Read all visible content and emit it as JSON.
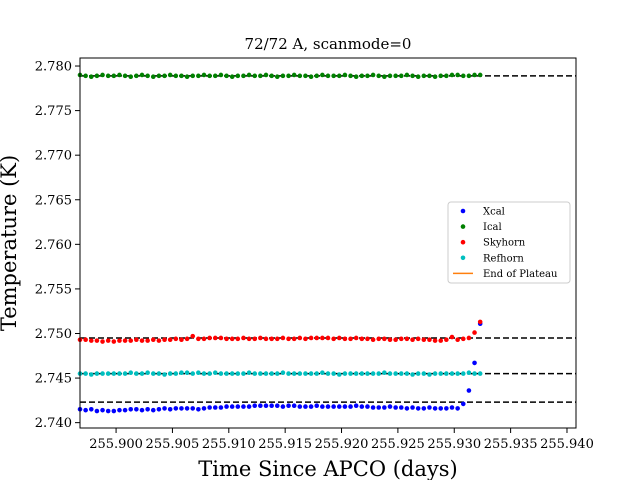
{
  "chart_data": {
    "type": "scatter",
    "title": "72/72 A, scanmode=0",
    "xlabel": "Time Since APCO (days)",
    "ylabel": "Temperature (K)",
    "xlim": [
      255.8968,
      255.9408
    ],
    "ylim": [
      2.7394,
      2.7809
    ],
    "xticks": [
      255.9,
      255.905,
      255.91,
      255.915,
      255.92,
      255.925,
      255.93,
      255.935,
      255.94
    ],
    "xtick_labels": [
      "255.900",
      "255.905",
      "255.910",
      "255.915",
      "255.920",
      "255.925",
      "255.930",
      "255.935",
      "255.940"
    ],
    "yticks": [
      2.74,
      2.745,
      2.75,
      2.755,
      2.76,
      2.765,
      2.77,
      2.775,
      2.78
    ],
    "ytick_labels": [
      "2.740",
      "2.745",
      "2.750",
      "2.755",
      "2.760",
      "2.765",
      "2.770",
      "2.775",
      "2.780"
    ],
    "legend_position": "center-right",
    "grid": false,
    "x_start": 255.8968,
    "x_step": 0.0005,
    "hlines": [
      {
        "y": 2.7789,
        "style": "dashed",
        "color": "#000000"
      },
      {
        "y": 2.7495,
        "style": "dashed",
        "color": "#000000"
      },
      {
        "y": 2.7455,
        "style": "dashed",
        "color": "#000000"
      },
      {
        "y": 2.7423,
        "style": "dashed",
        "color": "#000000"
      }
    ],
    "series": [
      {
        "name": "Xcal",
        "color": "#0000ff",
        "kind": "points",
        "values": [
          2.7415,
          2.7414,
          2.7415,
          2.7413,
          2.7414,
          2.7413,
          2.7413,
          2.7414,
          2.7414,
          2.7415,
          2.7415,
          2.7414,
          2.7415,
          2.7414,
          2.7415,
          2.7416,
          2.7415,
          2.7416,
          2.7416,
          2.7416,
          2.7416,
          2.7415,
          2.7416,
          2.7417,
          2.7417,
          2.7417,
          2.7418,
          2.7418,
          2.7418,
          2.7418,
          2.7418,
          2.7419,
          2.7419,
          2.7419,
          2.7419,
          2.7419,
          2.7418,
          2.7419,
          2.7419,
          2.7418,
          2.7418,
          2.7418,
          2.7419,
          2.7418,
          2.7418,
          2.7418,
          2.7418,
          2.7418,
          2.7418,
          2.7419,
          2.7418,
          2.7418,
          2.7417,
          2.7417,
          2.7417,
          2.7418,
          2.7417,
          2.7417,
          2.7416,
          2.7417,
          2.7416,
          2.7416,
          2.7417,
          2.7416,
          2.7416,
          2.7416,
          2.7417,
          2.7416,
          2.7421,
          2.7436,
          2.7467,
          2.7511
        ]
      },
      {
        "name": "Ical",
        "color": "#008000",
        "kind": "points",
        "values": [
          2.779,
          2.7789,
          2.7788,
          2.7789,
          2.779,
          2.7789,
          2.7789,
          2.779,
          2.7789,
          2.7788,
          2.7789,
          2.779,
          2.7789,
          2.7788,
          2.7789,
          2.7789,
          2.779,
          2.7789,
          2.7789,
          2.7788,
          2.7789,
          2.7789,
          2.779,
          2.7789,
          2.7789,
          2.779,
          2.7789,
          2.7788,
          2.7789,
          2.7789,
          2.779,
          2.7789,
          2.7789,
          2.779,
          2.7789,
          2.7788,
          2.7789,
          2.7789,
          2.779,
          2.7789,
          2.7789,
          2.7788,
          2.7789,
          2.779,
          2.7789,
          2.7789,
          2.7789,
          2.779,
          2.7789,
          2.7788,
          2.7789,
          2.7789,
          2.779,
          2.7789,
          2.7788,
          2.7789,
          2.7789,
          2.7789,
          2.779,
          2.7789,
          2.7788,
          2.7789,
          2.7789,
          2.7788,
          2.7789,
          2.7789,
          2.779,
          2.779,
          2.7789,
          2.7789,
          2.779,
          2.779
        ]
      },
      {
        "name": "Skyhorn",
        "color": "#ff0000",
        "kind": "points",
        "values": [
          2.7493,
          2.7493,
          2.7492,
          2.7492,
          2.7491,
          2.7492,
          2.7491,
          2.7492,
          2.7492,
          2.7492,
          2.7493,
          2.7492,
          2.7492,
          2.7493,
          2.7492,
          2.7493,
          2.7493,
          2.7494,
          2.7493,
          2.7494,
          2.7497,
          2.7494,
          2.7494,
          2.7495,
          2.7495,
          2.7495,
          2.7494,
          2.7494,
          2.7494,
          2.7495,
          2.7494,
          2.7494,
          2.7495,
          2.7494,
          2.7494,
          2.7494,
          2.7495,
          2.7494,
          2.7494,
          2.7495,
          2.7494,
          2.7495,
          2.7495,
          2.7495,
          2.7495,
          2.7494,
          2.7495,
          2.7494,
          2.7494,
          2.7495,
          2.7494,
          2.7494,
          2.7493,
          2.7494,
          2.7494,
          2.7493,
          2.7493,
          2.7494,
          2.7494,
          2.7493,
          2.7494,
          2.7493,
          2.7493,
          2.7492,
          2.7492,
          2.7493,
          2.7496,
          2.7493,
          2.7494,
          2.7495,
          2.7501,
          2.7513
        ]
      },
      {
        "name": "Refhorn",
        "color": "#00bfbf",
        "kind": "points",
        "values": [
          2.7455,
          2.7455,
          2.7454,
          2.7455,
          2.7455,
          2.7455,
          2.7455,
          2.7455,
          2.7455,
          2.7456,
          2.7455,
          2.7455,
          2.7456,
          2.7455,
          2.7455,
          2.7454,
          2.7455,
          2.7455,
          2.7456,
          2.7456,
          2.7455,
          2.7456,
          2.7455,
          2.7455,
          2.7456,
          2.7455,
          2.7455,
          2.7455,
          2.7455,
          2.7455,
          2.7456,
          2.7455,
          2.7455,
          2.7455,
          2.7455,
          2.7455,
          2.7456,
          2.7455,
          2.7455,
          2.7455,
          2.7455,
          2.7455,
          2.7455,
          2.7456,
          2.7455,
          2.7455,
          2.7454,
          2.7455,
          2.7455,
          2.7455,
          2.7455,
          2.7455,
          2.7455,
          2.7455,
          2.7456,
          2.7455,
          2.7455,
          2.7455,
          2.7455,
          2.7454,
          2.7455,
          2.7455,
          2.7454,
          2.7455,
          2.7455,
          2.7455,
          2.7455,
          2.7455,
          2.7455,
          2.7456,
          2.7455,
          2.7455
        ]
      },
      {
        "name": "End of Plateau",
        "color": "#ff7f0e",
        "kind": "line",
        "values": []
      }
    ]
  }
}
